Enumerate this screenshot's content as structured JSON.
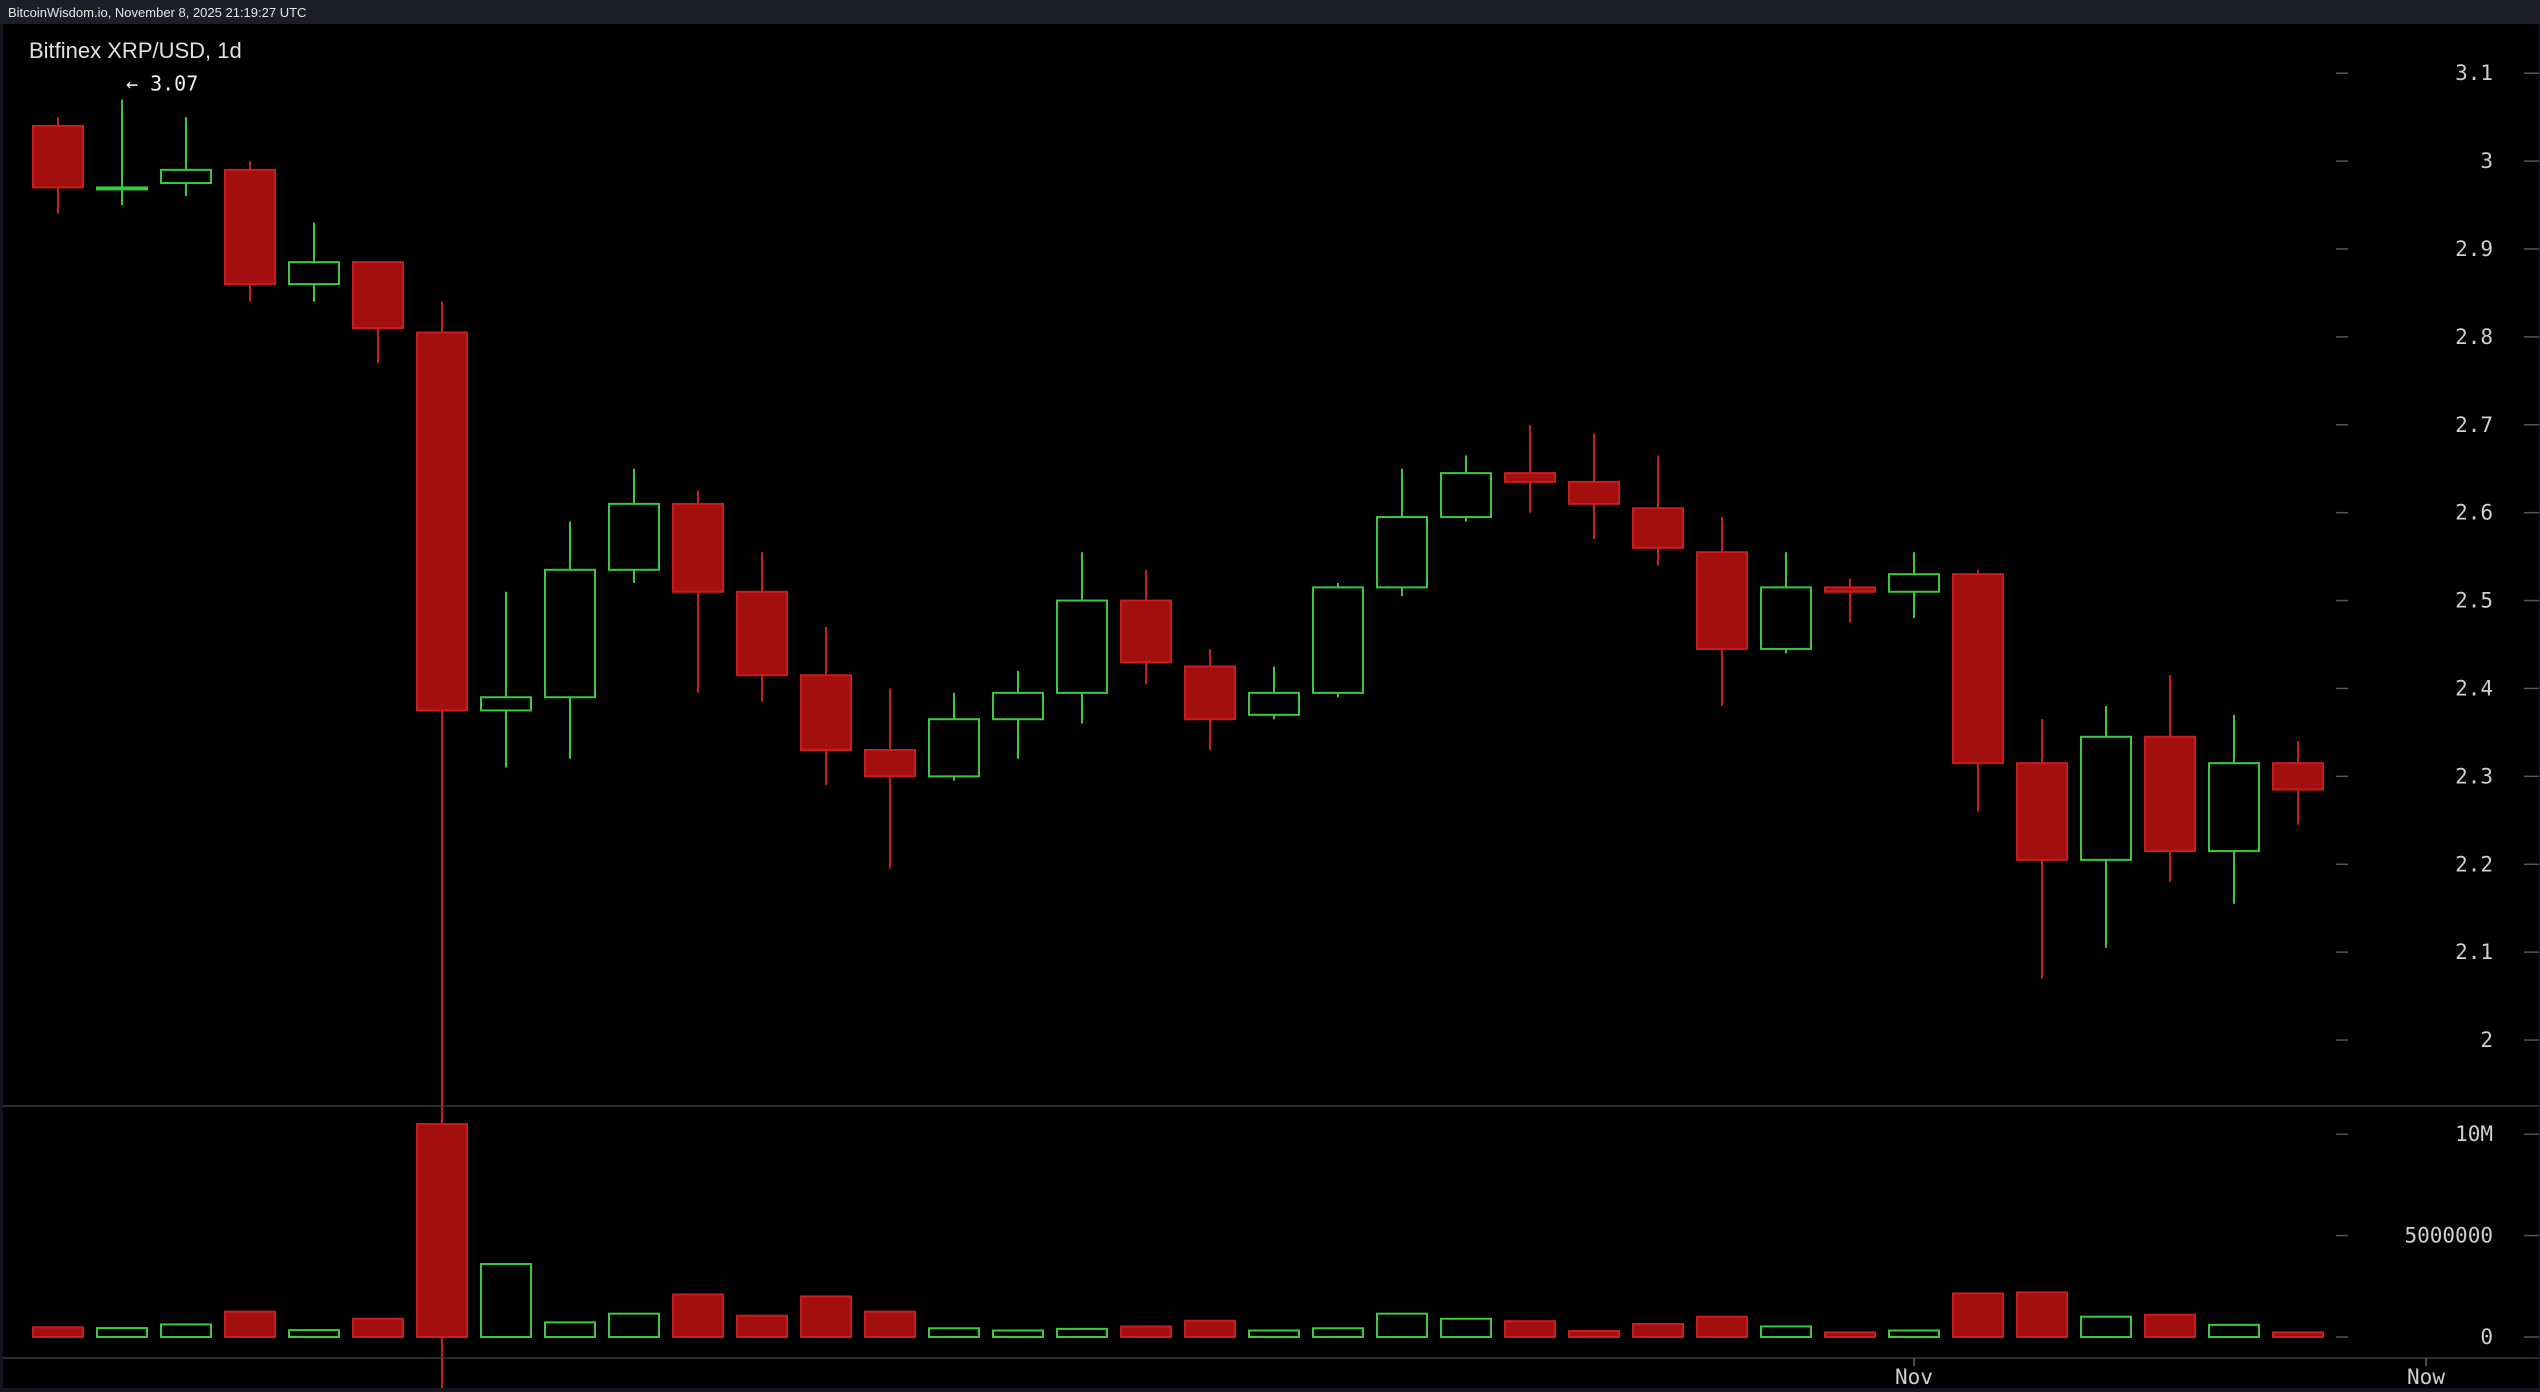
{
  "header": {
    "source_text": "BitcoinWisdom.io, November 8, 2025 21:19:27 UTC"
  },
  "colors": {
    "up": "#3dc93d",
    "down": "#a30f0f",
    "down_border": "#c81e1e",
    "axis_text": "#cfcfcf",
    "background": "#000000"
  },
  "chart_data": {
    "type": "candlestick",
    "title": "Bitfinex XRP/USD, 1d",
    "price_axis": {
      "ticks": [
        "3.1",
        "3",
        "2.9",
        "2.8",
        "2.7",
        "2.6",
        "2.5",
        "2.4",
        "2.3",
        "2.2",
        "2.1",
        "2"
      ],
      "range": [
        1.95,
        3.14
      ]
    },
    "volume_axis": {
      "ticks": [
        "10M",
        "5000000",
        "0"
      ],
      "range": [
        0,
        10800000
      ]
    },
    "x_labels": [
      {
        "index": 29,
        "text": "Nov"
      },
      {
        "index": 37,
        "text": "Now"
      }
    ],
    "high_marker": {
      "index": 1,
      "label": "← 3.07"
    },
    "candles": [
      {
        "o": 3.04,
        "h": 3.05,
        "l": 2.94,
        "c": 2.97,
        "v": 480000
      },
      {
        "o": 2.97,
        "h": 3.07,
        "l": 2.95,
        "c": 2.97,
        "v": 440000
      },
      {
        "o": 2.975,
        "h": 3.05,
        "l": 2.96,
        "c": 2.99,
        "v": 620000
      },
      {
        "o": 2.99,
        "h": 3.0,
        "l": 2.84,
        "c": 2.86,
        "v": 1250000
      },
      {
        "o": 2.86,
        "h": 2.93,
        "l": 2.84,
        "c": 2.885,
        "v": 340000
      },
      {
        "o": 2.885,
        "h": 2.885,
        "l": 2.77,
        "c": 2.81,
        "v": 900000
      },
      {
        "o": 2.805,
        "h": 2.84,
        "l": 1.77,
        "c": 2.375,
        "v": 10500000
      },
      {
        "o": 2.375,
        "h": 2.51,
        "l": 2.31,
        "c": 2.39,
        "v": 3600000
      },
      {
        "o": 2.39,
        "h": 2.59,
        "l": 2.32,
        "c": 2.535,
        "v": 720000
      },
      {
        "o": 2.535,
        "h": 2.65,
        "l": 2.52,
        "c": 2.61,
        "v": 1150000
      },
      {
        "o": 2.61,
        "h": 2.625,
        "l": 2.395,
        "c": 2.51,
        "v": 2100000
      },
      {
        "o": 2.51,
        "h": 2.555,
        "l": 2.385,
        "c": 2.415,
        "v": 1050000
      },
      {
        "o": 2.415,
        "h": 2.47,
        "l": 2.29,
        "c": 2.33,
        "v": 2000000
      },
      {
        "o": 2.33,
        "h": 2.4,
        "l": 2.195,
        "c": 2.3,
        "v": 1250000
      },
      {
        "o": 2.3,
        "h": 2.395,
        "l": 2.295,
        "c": 2.365,
        "v": 430000
      },
      {
        "o": 2.365,
        "h": 2.42,
        "l": 2.32,
        "c": 2.395,
        "v": 320000
      },
      {
        "o": 2.395,
        "h": 2.555,
        "l": 2.36,
        "c": 2.5,
        "v": 400000
      },
      {
        "o": 2.5,
        "h": 2.535,
        "l": 2.405,
        "c": 2.43,
        "v": 520000
      },
      {
        "o": 2.425,
        "h": 2.445,
        "l": 2.33,
        "c": 2.365,
        "v": 800000
      },
      {
        "o": 2.37,
        "h": 2.425,
        "l": 2.365,
        "c": 2.395,
        "v": 320000
      },
      {
        "o": 2.395,
        "h": 2.52,
        "l": 2.39,
        "c": 2.515,
        "v": 430000
      },
      {
        "o": 2.515,
        "h": 2.65,
        "l": 2.505,
        "c": 2.595,
        "v": 1150000
      },
      {
        "o": 2.595,
        "h": 2.665,
        "l": 2.59,
        "c": 2.645,
        "v": 900000
      },
      {
        "o": 2.645,
        "h": 2.7,
        "l": 2.6,
        "c": 2.635,
        "v": 780000
      },
      {
        "o": 2.635,
        "h": 2.69,
        "l": 2.57,
        "c": 2.61,
        "v": 300000
      },
      {
        "o": 2.605,
        "h": 2.665,
        "l": 2.54,
        "c": 2.56,
        "v": 640000
      },
      {
        "o": 2.555,
        "h": 2.595,
        "l": 2.38,
        "c": 2.445,
        "v": 1000000
      },
      {
        "o": 2.445,
        "h": 2.555,
        "l": 2.44,
        "c": 2.515,
        "v": 520000
      },
      {
        "o": 2.515,
        "h": 2.525,
        "l": 2.475,
        "c": 2.51,
        "v": 230000
      },
      {
        "o": 2.51,
        "h": 2.555,
        "l": 2.48,
        "c": 2.53,
        "v": 320000
      },
      {
        "o": 2.53,
        "h": 2.535,
        "l": 2.26,
        "c": 2.315,
        "v": 2150000
      },
      {
        "o": 2.315,
        "h": 2.365,
        "l": 2.07,
        "c": 2.205,
        "v": 2200000
      },
      {
        "o": 2.205,
        "h": 2.38,
        "l": 2.105,
        "c": 2.345,
        "v": 1000000
      },
      {
        "o": 2.345,
        "h": 2.415,
        "l": 2.18,
        "c": 2.215,
        "v": 1100000
      },
      {
        "o": 2.215,
        "h": 2.37,
        "l": 2.155,
        "c": 2.315,
        "v": 600000
      },
      {
        "o": 2.315,
        "h": 2.34,
        "l": 2.245,
        "c": 2.285,
        "v": 230000
      }
    ]
  }
}
